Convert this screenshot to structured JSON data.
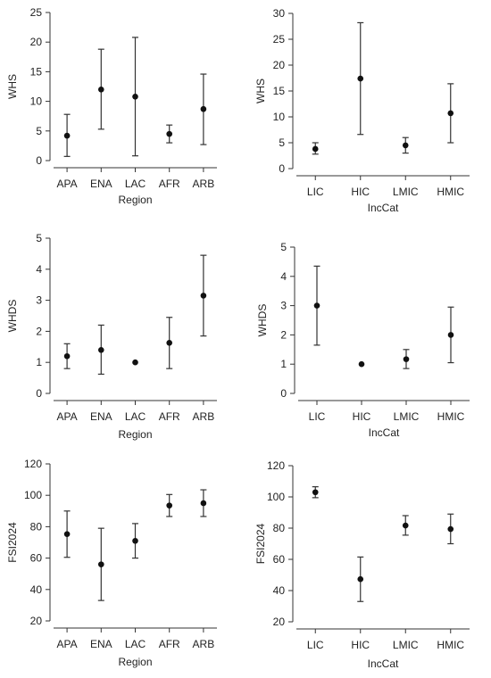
{
  "chart_data": [
    {
      "type": "scatter",
      "id": "whs-region",
      "xlabel": "Region",
      "ylabel": "WHS",
      "categories": [
        "APA",
        "ENA",
        "LAC",
        "AFR",
        "ARB"
      ],
      "ylim": [
        0,
        25
      ],
      "yticks": [
        0,
        5,
        10,
        15,
        20,
        25
      ],
      "values": [
        4.2,
        12.0,
        10.8,
        4.5,
        8.7
      ],
      "err_low": [
        0.7,
        5.3,
        0.8,
        3.0,
        2.7
      ],
      "err_high": [
        7.8,
        18.8,
        20.8,
        6.0,
        14.6
      ]
    },
    {
      "type": "scatter",
      "id": "whs-inccat",
      "xlabel": "IncCat",
      "ylabel": "WHS",
      "categories": [
        "LIC",
        "HIC",
        "LMIC",
        "HMIC"
      ],
      "ylim": [
        0,
        30
      ],
      "yticks": [
        0,
        5,
        10,
        15,
        20,
        25,
        30
      ],
      "values": [
        3.8,
        17.4,
        4.5,
        10.7
      ],
      "err_low": [
        2.8,
        6.6,
        3.0,
        5.0
      ],
      "err_high": [
        5.0,
        28.2,
        6.0,
        16.4
      ]
    },
    {
      "type": "scatter",
      "id": "whds-region",
      "xlabel": "Region",
      "ylabel": "WHDS",
      "categories": [
        "APA",
        "ENA",
        "LAC",
        "AFR",
        "ARB"
      ],
      "ylim": [
        0,
        5
      ],
      "yticks": [
        0,
        1,
        2,
        3,
        4,
        5
      ],
      "values": [
        1.2,
        1.4,
        1.0,
        1.63,
        3.15
      ],
      "err_low": [
        0.8,
        0.62,
        1.0,
        0.8,
        1.85
      ],
      "err_high": [
        1.6,
        2.2,
        1.0,
        2.45,
        4.45
      ]
    },
    {
      "type": "scatter",
      "id": "whds-inccat",
      "xlabel": "IncCat",
      "ylabel": "WHDS",
      "categories": [
        "LIC",
        "HIC",
        "LMIC",
        "HMIC"
      ],
      "ylim": [
        0,
        5
      ],
      "yticks": [
        0,
        1,
        2,
        3,
        4,
        5
      ],
      "values": [
        3.0,
        1.0,
        1.17,
        2.0
      ],
      "err_low": [
        1.65,
        1.0,
        0.85,
        1.05
      ],
      "err_high": [
        4.35,
        1.0,
        1.5,
        2.95
      ]
    },
    {
      "type": "scatter",
      "id": "fsi-region",
      "xlabel": "Region",
      "ylabel": "FSI2024",
      "categories": [
        "APA",
        "ENA",
        "LAC",
        "AFR",
        "ARB"
      ],
      "ylim": [
        20,
        120
      ],
      "yticks": [
        20,
        40,
        60,
        80,
        100,
        120
      ],
      "values": [
        75.3,
        56.0,
        71.0,
        93.5,
        95.0
      ],
      "err_low": [
        60.5,
        33.0,
        60.0,
        86.5,
        86.5
      ],
      "err_high": [
        90.0,
        79.0,
        82.0,
        100.5,
        103.5
      ]
    },
    {
      "type": "scatter",
      "id": "fsi-inccat",
      "xlabel": "IncCat",
      "ylabel": "FSI2024",
      "categories": [
        "LIC",
        "HIC",
        "LMIC",
        "HMIC"
      ],
      "ylim": [
        20,
        120
      ],
      "yticks": [
        20,
        40,
        60,
        80,
        100,
        120
      ],
      "values": [
        103.0,
        47.3,
        81.7,
        79.4
      ],
      "err_low": [
        99.5,
        33.0,
        75.5,
        70.0
      ],
      "err_high": [
        106.5,
        61.5,
        88.0,
        89.0
      ]
    }
  ]
}
